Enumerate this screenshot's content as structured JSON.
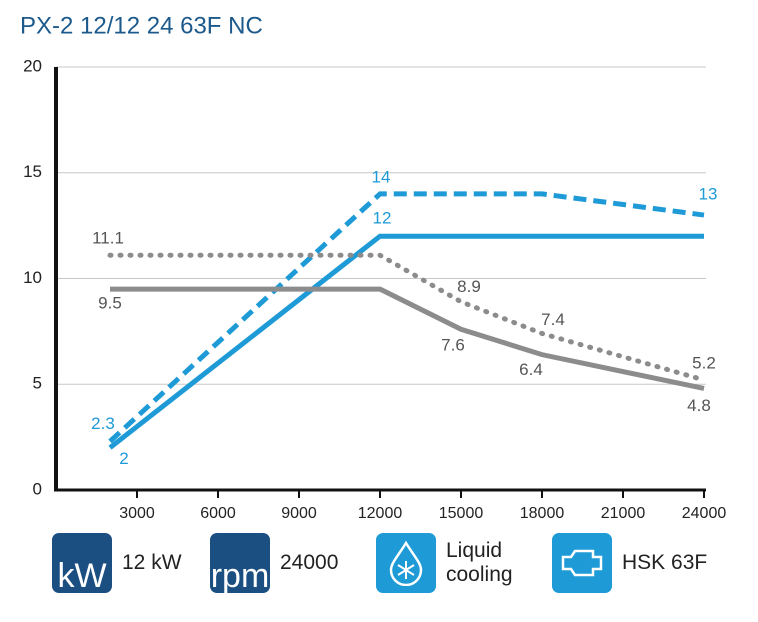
{
  "chart_data": {
    "type": "line",
    "title": "PX-2 12/12 24 63F NC",
    "x": [
      2000,
      12000,
      15000,
      18000,
      24000
    ],
    "xlim": [
      0,
      24000
    ],
    "xticks": [
      3000,
      6000,
      9000,
      12000,
      15000,
      18000,
      21000,
      24000
    ],
    "ylim": [
      0,
      20
    ],
    "yticks": [
      0,
      5,
      10,
      15,
      20
    ],
    "grid": true,
    "series": [
      {
        "color": "#1e9ad6",
        "dash": "solid",
        "values": [
          2,
          12,
          12,
          12,
          12
        ],
        "value_labels": [
          "2",
          "12",
          null,
          null,
          null
        ]
      },
      {
        "color": "#1e9ad6",
        "dash": "dashed",
        "values": [
          2.3,
          14,
          14,
          14,
          13
        ],
        "value_labels": [
          "2.3",
          "14",
          null,
          null,
          "13"
        ]
      },
      {
        "color": "#8c8c8c",
        "dash": "solid",
        "values": [
          9.5,
          9.5,
          7.6,
          6.4,
          4.8
        ],
        "value_labels": [
          "9.5",
          null,
          "7.6",
          "6.4",
          "4.8"
        ]
      },
      {
        "color": "#8c8c8c",
        "dash": "dotted",
        "values": [
          11.1,
          11.1,
          8.9,
          7.4,
          5.2
        ],
        "value_labels": [
          "11.1",
          null,
          "8.9",
          "7.4",
          "5.2"
        ]
      }
    ]
  },
  "specs": [
    {
      "icon": "kW",
      "label": "12 kW"
    },
    {
      "icon": "rpm",
      "label": "24000"
    },
    {
      "label": "Liquid cooling"
    },
    {
      "label": "HSK 63F"
    }
  ]
}
